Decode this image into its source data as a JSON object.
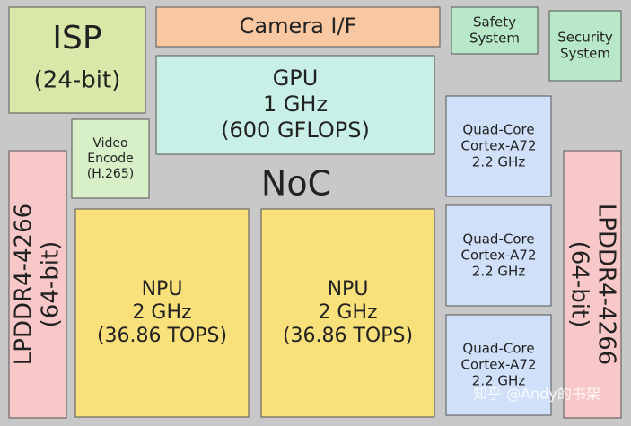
{
  "blocks": [
    {
      "name": "isp",
      "lines": [
        "ISP",
        "(24-bit)"
      ]
    },
    {
      "name": "camera",
      "lines": [
        "Camera I/F"
      ]
    },
    {
      "name": "safety",
      "lines": [
        "Safety",
        "System"
      ]
    },
    {
      "name": "security",
      "lines": [
        "Security",
        "System"
      ]
    },
    {
      "name": "gpu",
      "lines": [
        "GPU",
        "1 GHz",
        "(600 GFLOPS)"
      ]
    },
    {
      "name": "video",
      "lines": [
        "Video",
        "Encode",
        "(H.265)"
      ]
    },
    {
      "name": "lpddr-left",
      "lines": [
        "LPDDR4-4266",
        "(64-bit)"
      ]
    },
    {
      "name": "cpu-1",
      "lines": [
        "Quad-Core",
        "Cortex-A72",
        "2.2 GHz"
      ]
    },
    {
      "name": "cpu-2",
      "lines": [
        "Quad-Core",
        "Cortex-A72",
        "2.2 GHz"
      ]
    },
    {
      "name": "cpu-3",
      "lines": [
        "Quad-Core",
        "Cortex-A72",
        "2.2 GHz"
      ]
    },
    {
      "name": "lpddr-right",
      "lines": [
        "LPDDR4-4266",
        "(64-bit)"
      ]
    },
    {
      "name": "npu-1",
      "lines": [
        "NPU",
        "2 GHz",
        "(36.86 TOPS)"
      ]
    },
    {
      "name": "npu-2",
      "lines": [
        "NPU",
        "2 GHz",
        "(36.86 TOPS)"
      ]
    }
  ],
  "noc": "NoC",
  "watermark": "知乎 @Andy的书架"
}
